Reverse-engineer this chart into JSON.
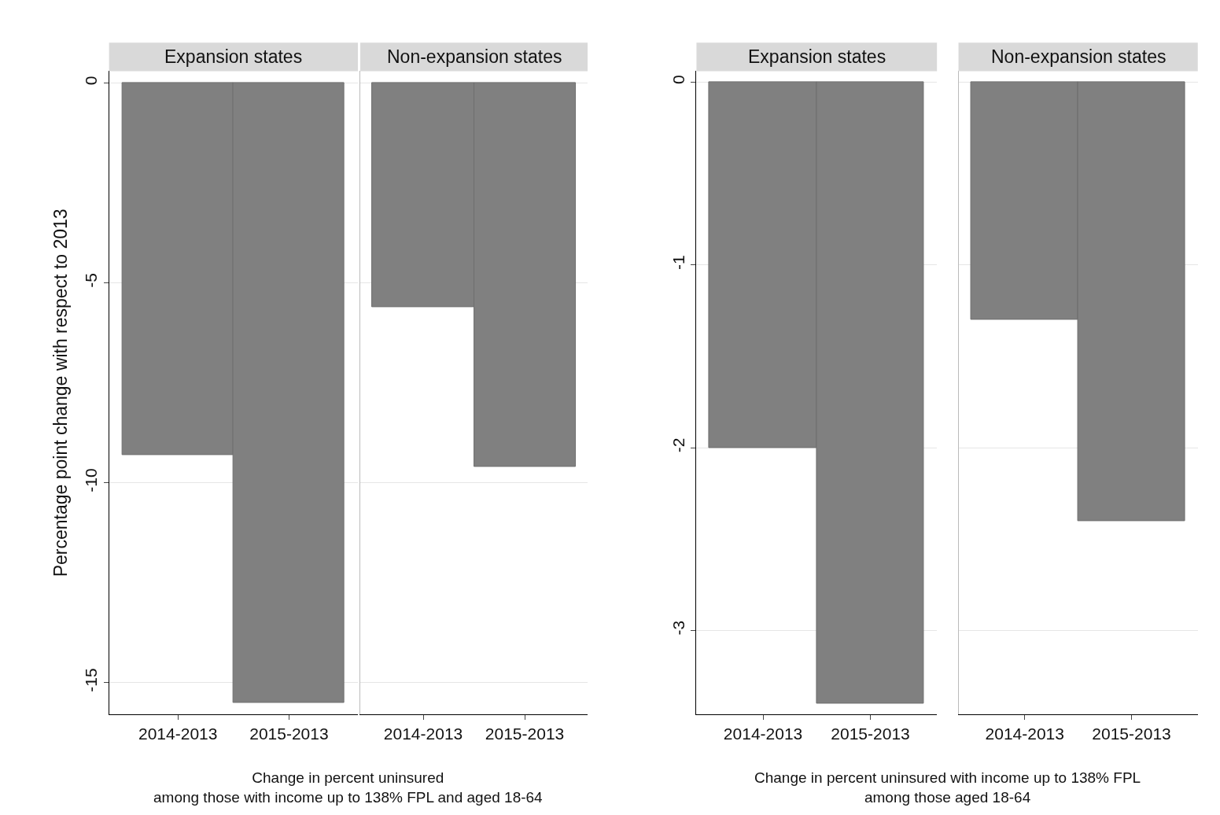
{
  "chart_data": [
    {
      "type": "bar",
      "title": "Expansion states",
      "ylabel": "Percentage point change with respect to 2013",
      "xlabel": "Change in percent uninsured\namong those with income up to 138% FPL and aged 18-64",
      "categories": [
        "2014-2013",
        "2015-2013"
      ],
      "values": [
        -9.3,
        -15.5
      ],
      "color": "#808080",
      "ylim": [
        -15.8,
        0.3
      ],
      "yticks": [
        0,
        -5,
        -10,
        -15
      ],
      "grid": "y"
    },
    {
      "type": "bar",
      "title": "Non-expansion states",
      "categories": [
        "2014-2013",
        "2015-2013"
      ],
      "values": [
        -5.6,
        -9.6
      ],
      "color": "#808080",
      "ylim": [
        -15.8,
        0.3
      ],
      "yticks": [
        0,
        -5,
        -10,
        -15
      ],
      "grid": "y",
      "tick_labels": "x"
    },
    {
      "type": "bar",
      "title": "Expansion states",
      "xlabel": "Change in percent uninsured with income up to 138% FPL\namong those aged 18-64",
      "categories": [
        "2014-2013",
        "2015-2013"
      ],
      "values": [
        -2.0,
        -3.4
      ],
      "color": "#808080",
      "ylim": [
        -3.46,
        0.06
      ],
      "yticks": [
        0,
        -1,
        -2,
        -3
      ],
      "grid": "y"
    },
    {
      "type": "bar",
      "title": "Non-expansion states",
      "categories": [
        "2014-2013",
        "2015-2013"
      ],
      "values": [
        -1.3,
        -2.4
      ],
      "color": "#808080",
      "ylim": [
        -3.46,
        0.06
      ],
      "yticks": [
        0,
        -1,
        -2,
        -3
      ],
      "grid": "y",
      "tick_labels": "x"
    }
  ]
}
